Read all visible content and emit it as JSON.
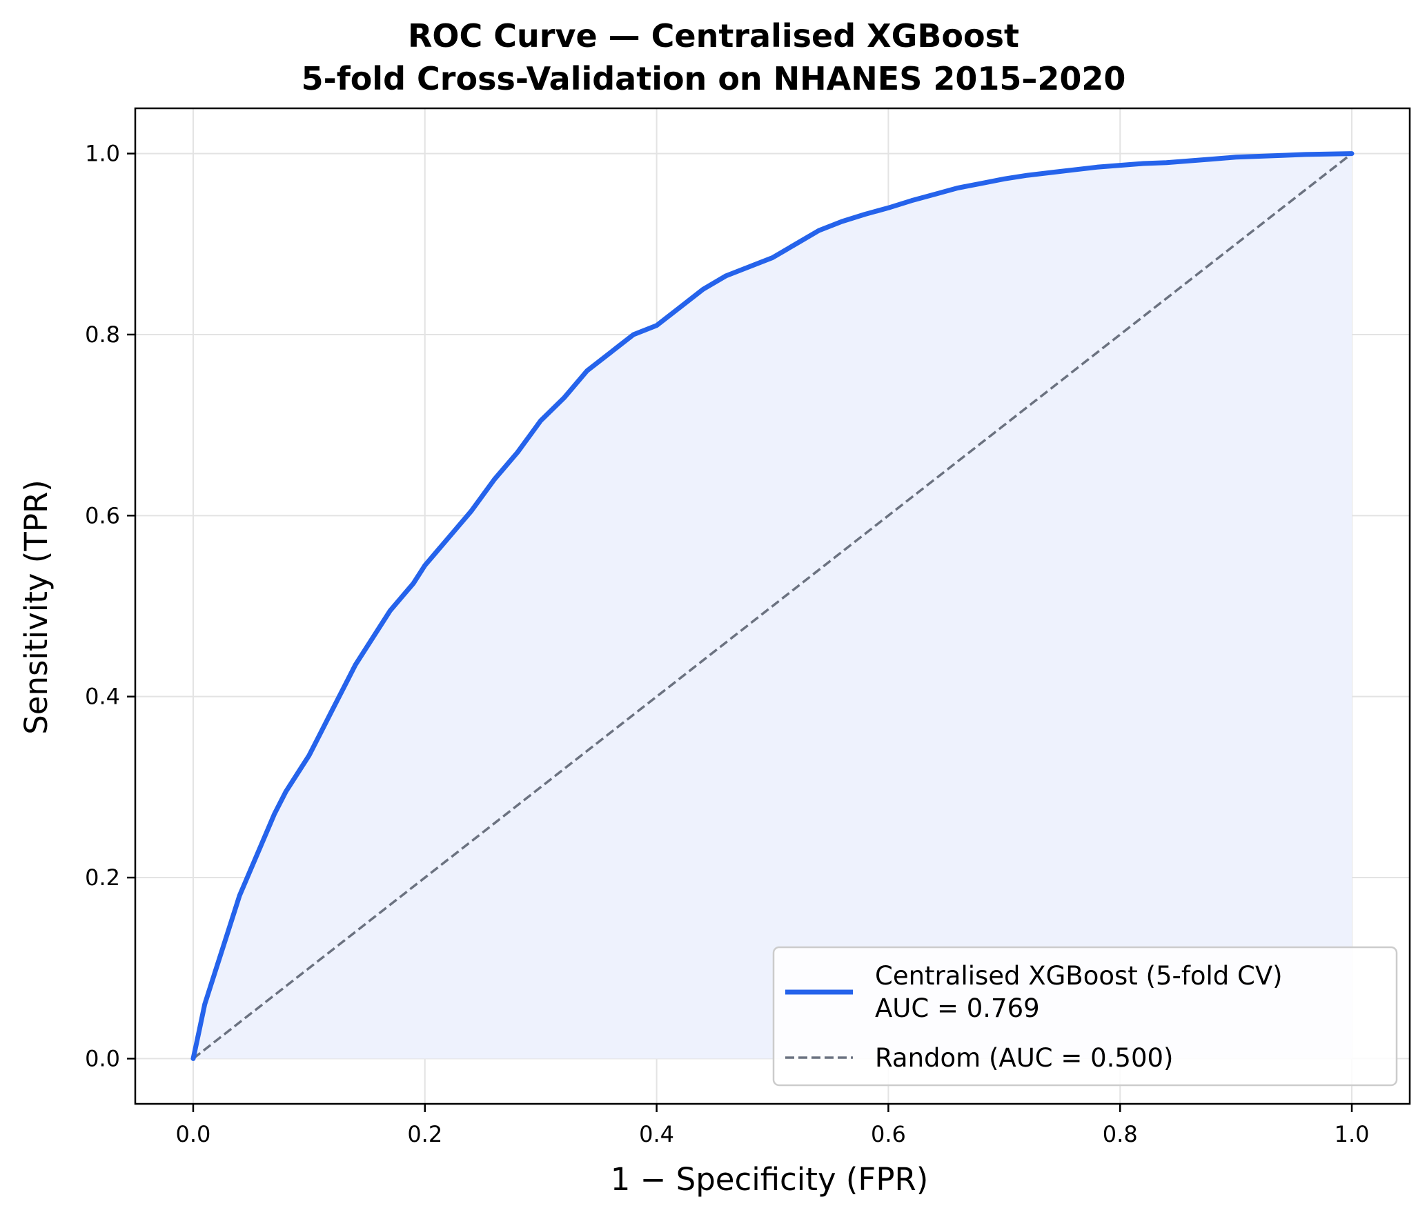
{
  "colors": {
    "roc_line": "#2563eb",
    "roc_fill": "#eef2fd",
    "random_line": "#6b7280",
    "grid": "#e3e3e3",
    "axes": "#000000",
    "legend_border": "#cccccc",
    "legend_bg": "#ffffff"
  },
  "chart_data": {
    "type": "line",
    "title": "ROC Curve — Centralised XGBoost",
    "subtitle": "5-fold Cross-Validation on NHANES 2015–2020",
    "xlabel": "1 − Specificity (FPR)",
    "ylabel": "Sensitivity (TPR)",
    "xlim": [
      -0.05,
      1.05
    ],
    "ylim": [
      -0.05,
      1.05
    ],
    "xticks": [
      0.0,
      0.2,
      0.4,
      0.6,
      0.8,
      1.0
    ],
    "yticks": [
      0.0,
      0.2,
      0.4,
      0.6,
      0.8,
      1.0
    ],
    "xtick_labels": [
      "0.0",
      "0.2",
      "0.4",
      "0.6",
      "0.8",
      "1.0"
    ],
    "ytick_labels": [
      "0.0",
      "0.2",
      "0.4",
      "0.6",
      "0.8",
      "1.0"
    ],
    "grid": true,
    "legend_position": "lower-right",
    "series": [
      {
        "name_line1": "Centralised XGBoost (5-fold CV)",
        "name_line2": "AUC = 0.769",
        "style": "solid",
        "filled": true,
        "x": [
          0.0,
          0.005,
          0.01,
          0.02,
          0.03,
          0.04,
          0.05,
          0.06,
          0.07,
          0.08,
          0.09,
          0.1,
          0.11,
          0.12,
          0.13,
          0.14,
          0.15,
          0.16,
          0.17,
          0.18,
          0.19,
          0.2,
          0.22,
          0.24,
          0.26,
          0.28,
          0.3,
          0.32,
          0.34,
          0.36,
          0.38,
          0.4,
          0.42,
          0.44,
          0.46,
          0.48,
          0.5,
          0.52,
          0.54,
          0.56,
          0.58,
          0.6,
          0.62,
          0.64,
          0.66,
          0.68,
          0.7,
          0.72,
          0.74,
          0.76,
          0.78,
          0.8,
          0.82,
          0.84,
          0.86,
          0.88,
          0.9,
          0.92,
          0.94,
          0.96,
          0.98,
          1.0
        ],
        "y": [
          0.0,
          0.03,
          0.06,
          0.1,
          0.14,
          0.18,
          0.21,
          0.24,
          0.27,
          0.295,
          0.315,
          0.335,
          0.36,
          0.385,
          0.41,
          0.435,
          0.455,
          0.475,
          0.495,
          0.51,
          0.525,
          0.545,
          0.575,
          0.605,
          0.64,
          0.67,
          0.705,
          0.73,
          0.76,
          0.78,
          0.8,
          0.81,
          0.83,
          0.85,
          0.865,
          0.875,
          0.885,
          0.9,
          0.915,
          0.925,
          0.933,
          0.94,
          0.948,
          0.955,
          0.962,
          0.967,
          0.972,
          0.976,
          0.979,
          0.982,
          0.985,
          0.987,
          0.989,
          0.99,
          0.992,
          0.994,
          0.996,
          0.997,
          0.998,
          0.999,
          0.9995,
          1.0
        ]
      },
      {
        "name": "Random (AUC = 0.500)",
        "style": "dashed",
        "x": [
          0.0,
          1.0
        ],
        "y": [
          0.0,
          1.0
        ]
      }
    ]
  }
}
